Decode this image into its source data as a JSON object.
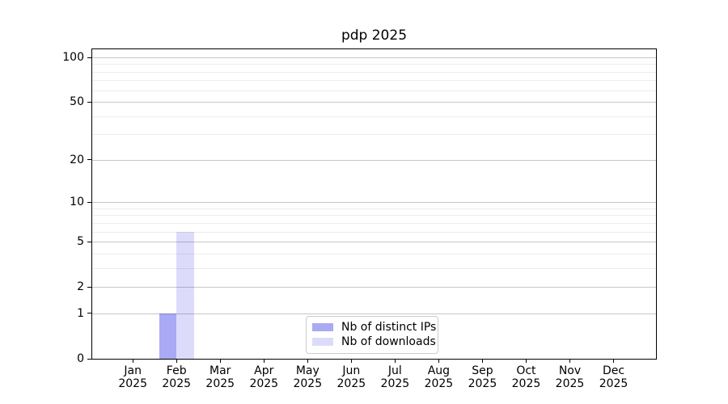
{
  "title": "pdp 2025",
  "chart_data": {
    "type": "bar",
    "title": "pdp 2025",
    "categories": [
      {
        "month": "Jan",
        "year": "2025"
      },
      {
        "month": "Feb",
        "year": "2025"
      },
      {
        "month": "Mar",
        "year": "2025"
      },
      {
        "month": "Apr",
        "year": "2025"
      },
      {
        "month": "May",
        "year": "2025"
      },
      {
        "month": "Jun",
        "year": "2025"
      },
      {
        "month": "Jul",
        "year": "2025"
      },
      {
        "month": "Aug",
        "year": "2025"
      },
      {
        "month": "Sep",
        "year": "2025"
      },
      {
        "month": "Oct",
        "year": "2025"
      },
      {
        "month": "Nov",
        "year": "2025"
      },
      {
        "month": "Dec",
        "year": "2025"
      }
    ],
    "series": [
      {
        "name": "Nb of distinct IPs",
        "color": "#a9a9f4",
        "values": [
          0,
          1,
          0,
          0,
          0,
          0,
          0,
          0,
          0,
          0,
          0,
          0
        ]
      },
      {
        "name": "Nb of downloads",
        "color": "#dcdcfa",
        "values": [
          0,
          6,
          0,
          0,
          0,
          0,
          0,
          0,
          0,
          0,
          0,
          0
        ]
      }
    ],
    "yticks": [
      0,
      1,
      2,
      5,
      10,
      20,
      50,
      100
    ],
    "minor_yticks": [
      3,
      4,
      6,
      7,
      8,
      9,
      30,
      40,
      60,
      70,
      80,
      90
    ],
    "ylim": [
      0,
      110
    ],
    "yscale": "log1p",
    "grid": true,
    "legend_position": "lower-center-inside",
    "colors": {
      "major_grid": "#c8c8c8",
      "minor_grid": "#ededed",
      "axis": "#000000",
      "background": "#ffffff"
    }
  }
}
